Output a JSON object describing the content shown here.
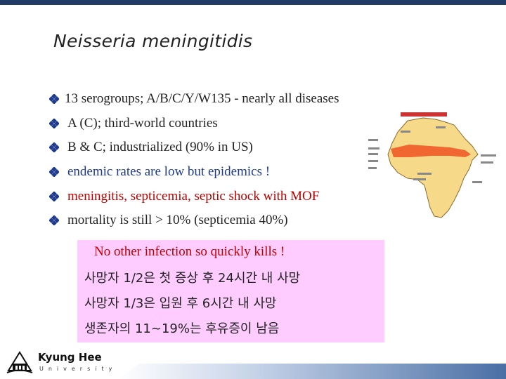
{
  "slide": {
    "title": "Neisseria meningitidis",
    "bullets": [
      "13 serogroups; A/B/C/Y/W135 - nearly all diseases",
      "A (C); third-world countries",
      "B & C; industrialized (90% in US)",
      "endemic rates are low but epidemics !",
      "meningitis, septicemia, septic shock with MOF",
      "mortality is still > 10% (septicemia 40%)"
    ],
    "callout": {
      "heading": "No other infection so quickly kills !",
      "lines": [
        "사망자 1/2은 첫 증상 후 24시간 내 사망",
        "사망자 1/3은 입원 후 6시간 내 사망",
        "생존자의 11~19%는 후유증이 남음"
      ]
    },
    "logo": {
      "name": "Kyung Hee",
      "sub": "University"
    }
  },
  "colors": {
    "top_bar": "#1f3b66",
    "bullet_blue": "#1f3b8f",
    "highlight_red": "#c00000",
    "callout_bg": "#ffccff",
    "stripe": "#4a6fa5"
  },
  "icons": {
    "bullet": "diamond-clover-icon",
    "map": "africa-meningitis-belt-map",
    "logo": "university-crest-icon"
  }
}
